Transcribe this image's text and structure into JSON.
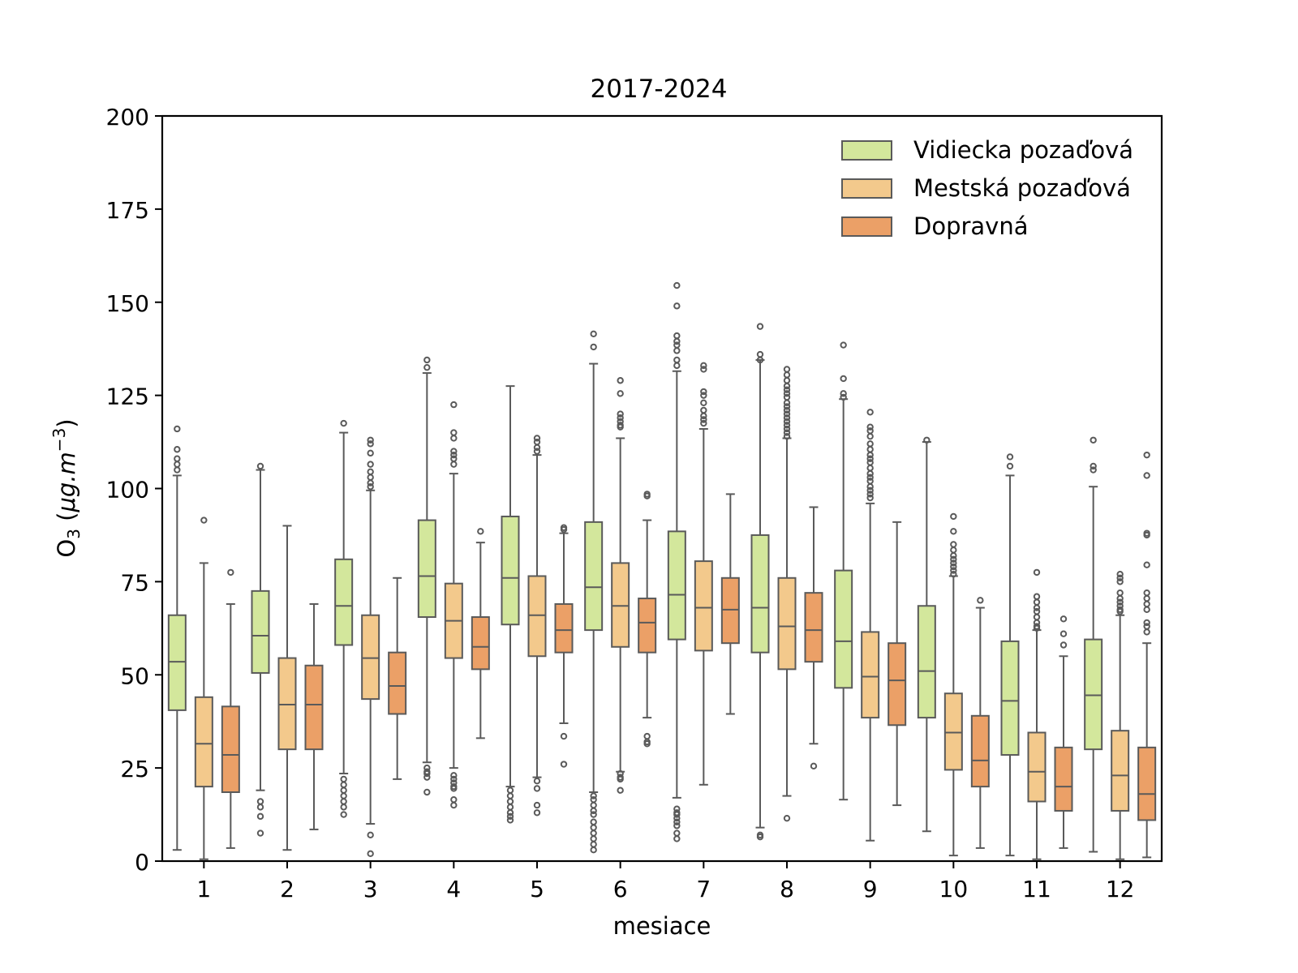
{
  "chart_data": {
    "type": "boxplot",
    "title": "2017-2024",
    "xlabel": "mesiace",
    "ylabel": "O3 (μg.m−3)",
    "ylim": [
      0,
      200
    ],
    "yticks": [
      0,
      25,
      50,
      75,
      100,
      125,
      150,
      175,
      200
    ],
    "categories": [
      "1",
      "2",
      "3",
      "4",
      "5",
      "6",
      "7",
      "8",
      "9",
      "10",
      "11",
      "12"
    ],
    "legend_position": "top-right",
    "series": [
      {
        "name": "Vidiecka pozaďová",
        "color": "#d3e79c",
        "boxes": [
          {
            "whislo": 3,
            "q1": 40.5,
            "med": 53.5,
            "q3": 66,
            "whishi": 103.5,
            "fliers": [
              116,
              110.5,
              108,
              106.5,
              105
            ]
          },
          {
            "whislo": 19,
            "q1": 50.5,
            "med": 60.5,
            "q3": 72.5,
            "whishi": 105,
            "fliers": [
              106,
              16,
              14.5,
              12,
              7.5
            ]
          },
          {
            "whislo": 23.5,
            "q1": 58,
            "med": 68.5,
            "q3": 81,
            "whishi": 115,
            "fliers": [
              117.5,
              22,
              20.5,
              19,
              17.5,
              16,
              14.5,
              12.5
            ]
          },
          {
            "whislo": 26.5,
            "q1": 65.5,
            "med": 76.5,
            "q3": 91.5,
            "whishi": 131,
            "fliers": [
              134.5,
              132.5,
              25,
              24,
              23.5,
              22.5,
              18.5
            ]
          },
          {
            "whislo": 20,
            "q1": 63.5,
            "med": 76,
            "q3": 92.5,
            "whishi": 127.5,
            "fliers": [
              19,
              17.5,
              16,
              14.5,
              13,
              12,
              11
            ]
          },
          {
            "whislo": 18.5,
            "q1": 62,
            "med": 73.5,
            "q3": 91,
            "whishi": 133.5,
            "fliers": [
              141.5,
              138,
              17.5,
              16.5,
              15,
              13.5,
              12.5,
              10.5,
              9,
              7.5,
              6,
              4.5,
              3
            ]
          },
          {
            "whislo": 17,
            "q1": 59.5,
            "med": 71.5,
            "q3": 88.5,
            "whishi": 131.5,
            "fliers": [
              154.5,
              149,
              141,
              139.5,
              138.5,
              137,
              134.5,
              133,
              14,
              13,
              12.5,
              11.5,
              10.5,
              9.5,
              7.5,
              6
            ]
          },
          {
            "whislo": 9,
            "q1": 56,
            "med": 68,
            "q3": 87.5,
            "whishi": 134.5,
            "fliers": [
              143.5,
              136,
              134.5,
              7,
              6.5
            ]
          },
          {
            "whislo": 16.5,
            "q1": 46.5,
            "med": 59,
            "q3": 78,
            "whishi": 124,
            "fliers": [
              138.5,
              129.5,
              125.5,
              124.5
            ]
          },
          {
            "whislo": 8,
            "q1": 38.5,
            "med": 51,
            "q3": 68.5,
            "whishi": 112.5,
            "fliers": [
              113
            ]
          },
          {
            "whislo": 1.5,
            "q1": 28.5,
            "med": 43,
            "q3": 59,
            "whishi": 103.5,
            "fliers": [
              108.5,
              106
            ]
          },
          {
            "whislo": 2.5,
            "q1": 30,
            "med": 44.5,
            "q3": 59.5,
            "whishi": 100.5,
            "fliers": [
              113,
              106,
              105
            ]
          }
        ]
      },
      {
        "name": "Mestská pozaďová",
        "color": "#f3c98c",
        "boxes": [
          {
            "whislo": 0.5,
            "q1": 20,
            "med": 31.5,
            "q3": 44,
            "whishi": 80,
            "fliers": [
              91.5
            ]
          },
          {
            "whislo": 3,
            "q1": 30,
            "med": 42,
            "q3": 54.5,
            "whishi": 90,
            "fliers": []
          },
          {
            "whislo": 10,
            "q1": 43.5,
            "med": 54.5,
            "q3": 66,
            "whishi": 99.5,
            "fliers": [
              113,
              112,
              109.5,
              106.5,
              104.5,
              103,
              101.5,
              100.5,
              7,
              2
            ]
          },
          {
            "whislo": 25,
            "q1": 54.5,
            "med": 64.5,
            "q3": 74.5,
            "whishi": 104,
            "fliers": [
              122.5,
              115,
              113.5,
              110,
              109,
              108,
              106.5,
              23,
              22,
              21,
              20,
              19.5,
              16.5,
              15
            ]
          },
          {
            "whislo": 22.5,
            "q1": 55,
            "med": 66,
            "q3": 76.5,
            "whishi": 109,
            "fliers": [
              113.5,
              112.5,
              111,
              110,
              21.5,
              19.5,
              15,
              13
            ]
          },
          {
            "whislo": 24,
            "q1": 57.5,
            "med": 68.5,
            "q3": 80,
            "whishi": 113.5,
            "fliers": [
              129,
              125.5,
              120,
              119,
              118,
              117,
              116.5,
              23.5,
              22.5,
              22,
              19
            ]
          },
          {
            "whislo": 20.5,
            "q1": 56.5,
            "med": 68,
            "q3": 80.5,
            "whishi": 116,
            "fliers": [
              133,
              132,
              126,
              125,
              123,
              121,
              119.5,
              118.5,
              117.5
            ]
          },
          {
            "whislo": 17.5,
            "q1": 51.5,
            "med": 63,
            "q3": 76,
            "whishi": 113.5,
            "fliers": [
              132,
              130.5,
              129,
              127.5,
              126.5,
              125.5,
              124.5,
              123,
              122,
              121,
              120,
              119,
              118,
              117,
              116,
              115,
              114,
              11.5
            ]
          },
          {
            "whislo": 5.5,
            "q1": 38.5,
            "med": 49.5,
            "q3": 61.5,
            "whishi": 96,
            "fliers": [
              120.5,
              116.5,
              115.5,
              114,
              112,
              110.5,
              109,
              108,
              107,
              105.5,
              104,
              103,
              102,
              100.5,
              99.5,
              98.5,
              97.5
            ]
          },
          {
            "whislo": 1.5,
            "q1": 24.5,
            "med": 34.5,
            "q3": 45,
            "whishi": 76.5,
            "fliers": [
              92.5,
              88.5,
              85,
              83.5,
              82,
              81,
              80,
              79,
              78,
              77
            ]
          },
          {
            "whislo": 0.5,
            "q1": 16,
            "med": 24,
            "q3": 34.5,
            "whishi": 62,
            "fliers": [
              77.5,
              71,
              69.5,
              68,
              67,
              65.5,
              64,
              63,
              62.5
            ]
          },
          {
            "whislo": 0.5,
            "q1": 13.5,
            "med": 23,
            "q3": 35,
            "whishi": 66,
            "fliers": [
              77,
              76,
              75,
              72,
              70.5,
              69.5,
              68.5,
              67.5,
              67
            ]
          }
        ]
      },
      {
        "name": "Dopravná",
        "color": "#eba067",
        "boxes": [
          {
            "whislo": 3.5,
            "q1": 18.5,
            "med": 28.5,
            "q3": 41.5,
            "whishi": 69,
            "fliers": [
              77.5
            ]
          },
          {
            "whislo": 8.5,
            "q1": 30,
            "med": 42,
            "q3": 52.5,
            "whishi": 69,
            "fliers": []
          },
          {
            "whislo": 22,
            "q1": 39.5,
            "med": 47,
            "q3": 56,
            "whishi": 76,
            "fliers": []
          },
          {
            "whislo": 33,
            "q1": 51.5,
            "med": 57.5,
            "q3": 65.5,
            "whishi": 85.5,
            "fliers": [
              88.5
            ]
          },
          {
            "whislo": 37,
            "q1": 56,
            "med": 62,
            "q3": 69,
            "whishi": 88,
            "fliers": [
              89.5,
              89,
              33.5,
              26
            ]
          },
          {
            "whislo": 38.5,
            "q1": 56,
            "med": 64,
            "q3": 70.5,
            "whishi": 91.5,
            "fliers": [
              98.5,
              98,
              33.5,
              32,
              31.5
            ]
          },
          {
            "whislo": 39.5,
            "q1": 58.5,
            "med": 67.5,
            "q3": 76,
            "whishi": 98.5,
            "fliers": []
          },
          {
            "whislo": 31.5,
            "q1": 53.5,
            "med": 62,
            "q3": 72,
            "whishi": 95,
            "fliers": [
              25.5
            ]
          },
          {
            "whislo": 15,
            "q1": 36.5,
            "med": 48.5,
            "q3": 58.5,
            "whishi": 91,
            "fliers": []
          },
          {
            "whislo": 3.5,
            "q1": 20,
            "med": 27,
            "q3": 39,
            "whishi": 68,
            "fliers": [
              70
            ]
          },
          {
            "whislo": 3.5,
            "q1": 13.5,
            "med": 20,
            "q3": 30.5,
            "whishi": 55,
            "fliers": [
              65,
              61,
              58
            ]
          },
          {
            "whislo": 1,
            "q1": 11,
            "med": 18,
            "q3": 30.5,
            "whishi": 58.5,
            "fliers": [
              109,
              103.5,
              88,
              87.5,
              79.5,
              72,
              70.5,
              69,
              67.5,
              64,
              63,
              61.5
            ]
          }
        ]
      }
    ]
  }
}
